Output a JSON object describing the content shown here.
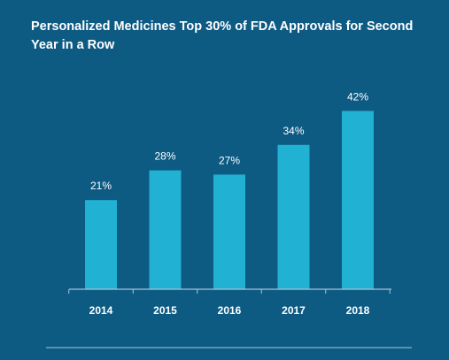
{
  "chart_data": {
    "type": "bar",
    "title": "Personalized Medicines Top 30% of FDA Approvals for Second Year in a Row",
    "categories": [
      "2014",
      "2015",
      "2016",
      "2017",
      "2018"
    ],
    "values": [
      21,
      28,
      27,
      34,
      42
    ],
    "data_labels": [
      "21%",
      "28%",
      "27%",
      "34%",
      "42%"
    ],
    "xlabel": "",
    "ylabel": "",
    "ylim": [
      0,
      45
    ],
    "grid": false,
    "legend": "none",
    "colors": {
      "background": "#0d5a83",
      "bar": "#21b1d3",
      "axis": "#a9c4d4",
      "text": "#ffffff"
    }
  }
}
